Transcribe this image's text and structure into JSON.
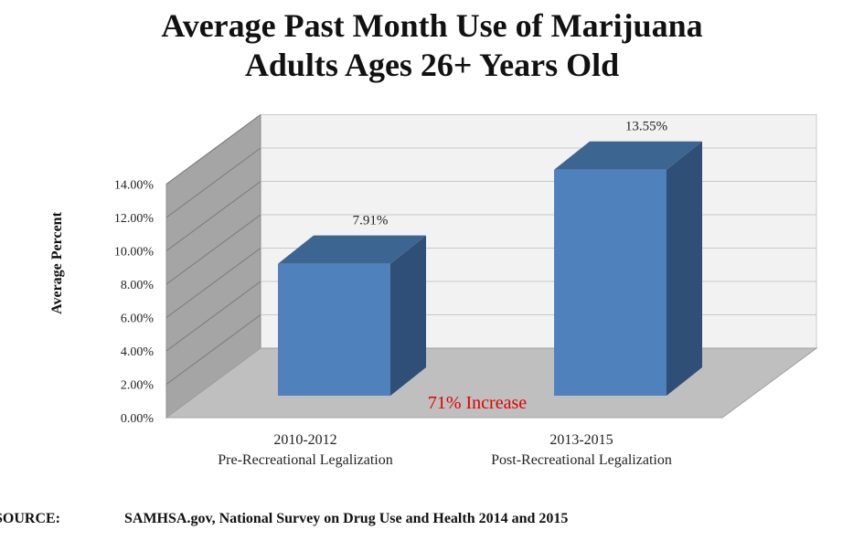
{
  "chart_data": {
    "type": "bar",
    "title_line1": "Average Past Month Use of Marijuana",
    "title_line2": "Adults Ages 26+ Years Old",
    "ylabel": "Average Percent",
    "ylim": [
      0,
      14
    ],
    "y_ticks": [
      {
        "value": 0,
        "label": "0.00%"
      },
      {
        "value": 2,
        "label": "2.00%"
      },
      {
        "value": 4,
        "label": "4.00%"
      },
      {
        "value": 6,
        "label": "6.00%"
      },
      {
        "value": 8,
        "label": "8.00%"
      },
      {
        "value": 10,
        "label": "10.00%"
      },
      {
        "value": 12,
        "label": "12.00%"
      },
      {
        "value": 14,
        "label": "14.00%"
      }
    ],
    "categories": [
      {
        "period": "2010-2012",
        "phase": "Pre-Recreational Legalization"
      },
      {
        "period": "2013-2015",
        "phase": "Post-Recreational Legalization"
      }
    ],
    "values": [
      7.91,
      13.55
    ],
    "data_labels": [
      "7.91%",
      "13.55%"
    ],
    "annotation": "71% Increase",
    "colors": {
      "bar_front": "#4f81bd",
      "bar_top": "#3d6592",
      "bar_side": "#2f4f77",
      "annotation": "#e00000",
      "back_wall": "#f2f2f2",
      "side_wall": "#a5a5a5",
      "floor": "#bfbfbf"
    }
  },
  "source": {
    "label": "SOURCE:",
    "text": "SAMHSA.gov, National Survey on Drug Use and Health 2014 and 2015"
  }
}
